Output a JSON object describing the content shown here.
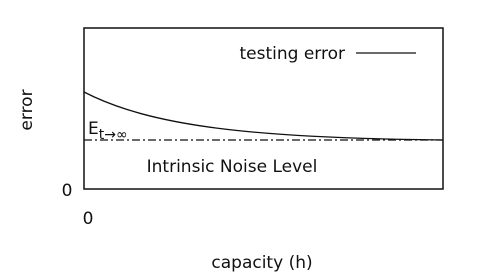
{
  "axes": {
    "y_label": "error",
    "x_label": "capacity (h)",
    "y_origin": "0",
    "x_origin": "0"
  },
  "legend": {
    "label": "testing error"
  },
  "annotations": {
    "asymptote_symbol": "E",
    "asymptote_subscript": "t→∞",
    "noise_label": "Intrinsic Noise Level"
  }
}
